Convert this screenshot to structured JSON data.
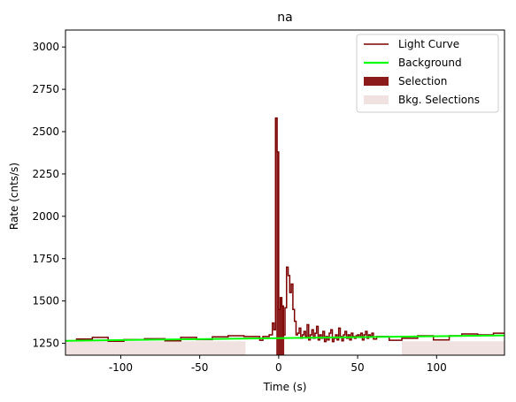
{
  "chart_data": {
    "type": "line",
    "title": "na",
    "xlabel": "Time (s)",
    "ylabel": "Rate (cnts/s)",
    "xlim": [
      -135,
      143
    ],
    "ylim": [
      1180,
      3100
    ],
    "xticks": [
      -100,
      -50,
      0,
      50,
      100
    ],
    "yticks": [
      1250,
      1500,
      1750,
      2000,
      2250,
      2500,
      2750,
      3000
    ],
    "grid": false,
    "legend_position": "top-right",
    "legend": [
      {
        "label": "Light Curve",
        "kind": "line",
        "color": "#7b0000"
      },
      {
        "label": "Background",
        "kind": "line",
        "color": "#00ff00"
      },
      {
        "label": "Selection",
        "kind": "patch",
        "color": "#8b1a1a"
      },
      {
        "label": "Bkg. Selections",
        "kind": "patch",
        "color": "#f0e2e0"
      }
    ],
    "colors": {
      "light_curve": "#7b0000",
      "background": "#00ff00",
      "selection": "#8b1a1a",
      "bkg_selection": "#f0e2e0"
    },
    "bkg_selections": [
      [
        -135,
        -21
      ],
      [
        78,
        143
      ]
    ],
    "selection": [
      -1.5,
      3.5
    ],
    "background_line": {
      "x": [
        -135,
        143
      ],
      "y": [
        1265,
        1297
      ]
    },
    "light_curve": {
      "edges": [
        -135,
        -128,
        -118,
        -108,
        -98,
        -85,
        -72,
        -62,
        -52,
        -42,
        -32,
        -22,
        -12,
        -10,
        -6,
        -4,
        -3,
        -2,
        -1,
        0,
        1,
        2,
        3,
        4,
        5,
        6,
        7,
        8,
        9,
        10,
        11,
        12,
        13,
        14,
        15,
        16,
        17,
        18,
        19,
        20,
        21,
        22,
        23,
        24,
        25,
        26,
        27,
        28,
        29,
        30,
        31,
        32,
        33,
        34,
        35,
        36,
        37,
        38,
        39,
        40,
        41,
        42,
        43,
        44,
        45,
        46,
        47,
        48,
        49,
        50,
        51,
        52,
        53,
        54,
        55,
        56,
        57,
        58,
        59,
        60,
        62,
        70,
        78,
        88,
        98,
        108,
        116,
        126,
        136,
        143
      ],
      "values": [
        1265,
        1275,
        1285,
        1262,
        1272,
        1277,
        1265,
        1285,
        1272,
        1288,
        1295,
        1290,
        1268,
        1290,
        1300,
        1370,
        1330,
        2580,
        2380,
        1450,
        1520,
        1470,
        1300,
        1460,
        1700,
        1650,
        1550,
        1600,
        1450,
        1380,
        1300,
        1310,
        1340,
        1280,
        1300,
        1320,
        1290,
        1360,
        1270,
        1300,
        1330,
        1280,
        1310,
        1350,
        1270,
        1300,
        1280,
        1320,
        1260,
        1290,
        1270,
        1310,
        1330,
        1260,
        1280,
        1300,
        1270,
        1340,
        1290,
        1265,
        1300,
        1320,
        1280,
        1300,
        1270,
        1310,
        1290,
        1280,
        1295,
        1300,
        1285,
        1310,
        1270,
        1300,
        1320,
        1280,
        1300,
        1290,
        1310,
        1275,
        1290,
        1268,
        1280,
        1295,
        1270,
        1295,
        1305,
        1300,
        1310
      ]
    }
  }
}
